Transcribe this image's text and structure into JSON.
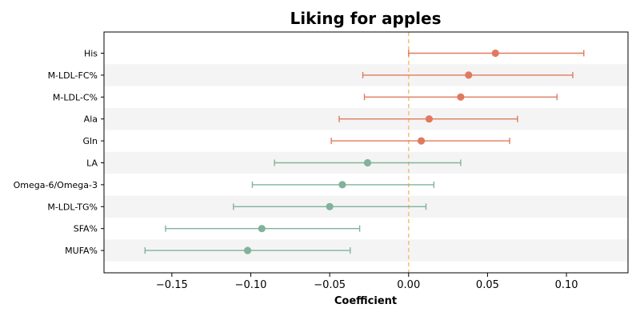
{
  "chart_data": {
    "type": "forest",
    "title": "Liking for apples",
    "xlabel": "Coefficient",
    "ylabel": "",
    "xlim": [
      -0.193,
      0.139
    ],
    "xticks": [
      -0.15,
      -0.1,
      -0.05,
      0.0,
      0.05,
      0.1
    ],
    "xtick_labels": [
      "−0.15",
      "−0.10",
      "−0.05",
      "0.00",
      "0.05",
      "0.10"
    ],
    "reference_line": 0.0,
    "colors": {
      "positive": "#e07a5f",
      "negative": "#81b29a",
      "reference": "#f4c27f",
      "band": "#f4f4f4"
    },
    "items": [
      {
        "label": "His",
        "coef": 0.055,
        "lower": 0.0,
        "upper": 0.111
      },
      {
        "label": "M-LDL-FC%",
        "coef": 0.038,
        "lower": -0.029,
        "upper": 0.104
      },
      {
        "label": "M-LDL-C%",
        "coef": 0.033,
        "lower": -0.028,
        "upper": 0.094
      },
      {
        "label": "Ala",
        "coef": 0.013,
        "lower": -0.044,
        "upper": 0.069
      },
      {
        "label": "Gln",
        "coef": 0.008,
        "lower": -0.049,
        "upper": 0.064
      },
      {
        "label": "LA",
        "coef": -0.026,
        "lower": -0.085,
        "upper": 0.033
      },
      {
        "label": "Omega-6/Omega-3",
        "coef": -0.042,
        "lower": -0.099,
        "upper": 0.016
      },
      {
        "label": "M-LDL-TG%",
        "coef": -0.05,
        "lower": -0.111,
        "upper": 0.011
      },
      {
        "label": "SFA%",
        "coef": -0.093,
        "lower": -0.154,
        "upper": -0.031
      },
      {
        "label": "MUFA%",
        "coef": -0.102,
        "lower": -0.167,
        "upper": -0.037
      }
    ]
  }
}
